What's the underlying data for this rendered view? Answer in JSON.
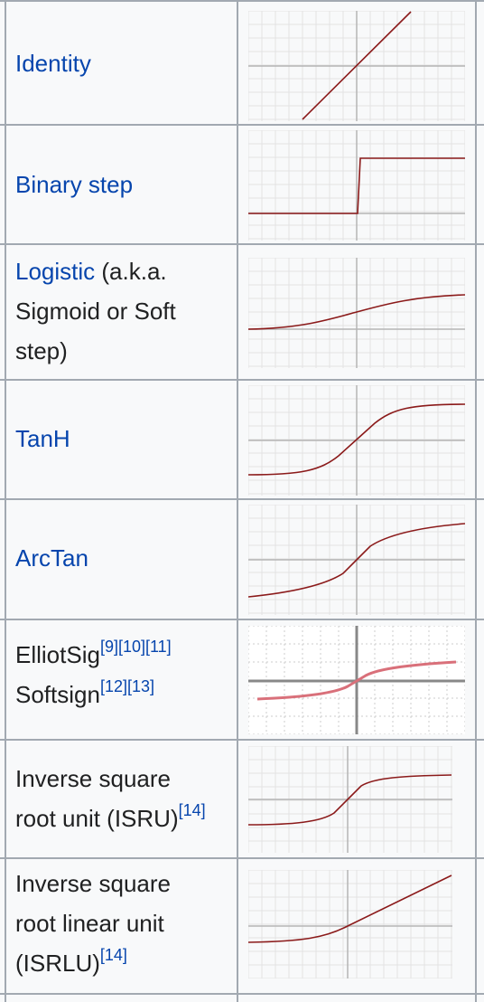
{
  "rows": [
    {
      "name": "Identity"
    },
    {
      "name": "Binary step"
    },
    {
      "name": "Logistic",
      "suffix_lines": [
        " (a.k.a.",
        "Sigmoid or Soft",
        "step)"
      ]
    },
    {
      "name": "TanH"
    },
    {
      "name": "ArcTan"
    },
    {
      "line1": "ElliotSig",
      "refs1": [
        "[9]",
        "[10]",
        "[11]"
      ],
      "line2": "Softsign",
      "refs2": [
        "[12]",
        "[13]"
      ]
    },
    {
      "lines": [
        "Inverse square",
        "root unit (ISRU)"
      ],
      "refs": [
        "[14]"
      ]
    },
    {
      "lines": [
        "Inverse square",
        "root linear unit",
        "(ISRLU)"
      ],
      "refs": [
        "[14]"
      ]
    }
  ],
  "colors": {
    "curve": "#8b1a1a",
    "softsign_curve": "#d9707a",
    "grid": "#e3e3e3",
    "axis": "#b5b5b5",
    "link": "#0645ad"
  }
}
